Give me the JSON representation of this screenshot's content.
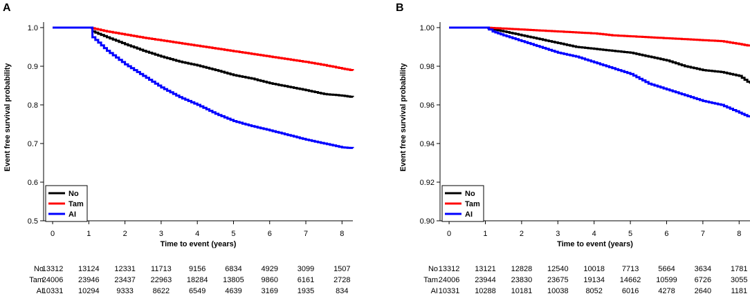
{
  "chart_data": [
    {
      "panel": "A",
      "type": "line",
      "xlabel": "Time to event (years)",
      "ylabel": "Event free survival probability",
      "xlim": [
        -0.25,
        8.3
      ],
      "ylim": [
        0.5,
        1.0
      ],
      "xticks": [
        "0",
        "1",
        "2",
        "3",
        "4",
        "5",
        "6",
        "7",
        "8"
      ],
      "yticks": [
        "0.5",
        "0.6",
        "0.7",
        "0.8",
        "0.9",
        "1.0"
      ],
      "legend": [
        "No",
        "Tam",
        "AI"
      ],
      "series": [
        {
          "name": "No",
          "color": "#000000",
          "points": [
            [
              0,
              1.0
            ],
            [
              1,
              1.0
            ],
            [
              1.1,
              0.99
            ],
            [
              1.5,
              0.975
            ],
            [
              2,
              0.957
            ],
            [
              2.5,
              0.94
            ],
            [
              3,
              0.925
            ],
            [
              3.5,
              0.912
            ],
            [
              4,
              0.902
            ],
            [
              4.5,
              0.89
            ],
            [
              5,
              0.877
            ],
            [
              5.5,
              0.868
            ],
            [
              6,
              0.856
            ],
            [
              6.5,
              0.847
            ],
            [
              7,
              0.838
            ],
            [
              7.5,
              0.828
            ],
            [
              8,
              0.824
            ],
            [
              8.3,
              0.82
            ]
          ]
        },
        {
          "name": "Tam",
          "color": "#ff0000",
          "points": [
            [
              0,
              1.0
            ],
            [
              1,
              1.0
            ],
            [
              1.5,
              0.99
            ],
            [
              2,
              0.982
            ],
            [
              2.5,
              0.974
            ],
            [
              3,
              0.967
            ],
            [
              3.5,
              0.96
            ],
            [
              4,
              0.953
            ],
            [
              4.5,
              0.946
            ],
            [
              5,
              0.939
            ],
            [
              5.5,
              0.932
            ],
            [
              6,
              0.925
            ],
            [
              6.5,
              0.918
            ],
            [
              7,
              0.911
            ],
            [
              7.5,
              0.903
            ],
            [
              8,
              0.894
            ],
            [
              8.3,
              0.889
            ]
          ]
        },
        {
          "name": "AI",
          "color": "#0000ff",
          "points": [
            [
              0,
              1.0
            ],
            [
              1,
              1.0
            ],
            [
              1.1,
              0.975
            ],
            [
              1.5,
              0.94
            ],
            [
              2,
              0.905
            ],
            [
              2.5,
              0.875
            ],
            [
              3,
              0.845
            ],
            [
              3.5,
              0.82
            ],
            [
              4,
              0.8
            ],
            [
              4.5,
              0.777
            ],
            [
              5,
              0.758
            ],
            [
              5.5,
              0.745
            ],
            [
              6,
              0.734
            ],
            [
              6.5,
              0.722
            ],
            [
              7,
              0.71
            ],
            [
              7.5,
              0.7
            ],
            [
              8,
              0.69
            ],
            [
              8.3,
              0.688
            ]
          ]
        }
      ],
      "risk_table": {
        "times": [
          "0",
          "1",
          "2",
          "3",
          "4",
          "5",
          "6",
          "7",
          "8"
        ],
        "rows": [
          {
            "label": "No",
            "counts": [
              "13312",
              "13124",
              "12331",
              "11713",
              "9156",
              "6834",
              "4929",
              "3099",
              "1507"
            ]
          },
          {
            "label": "Tam",
            "counts": [
              "24006",
              "23946",
              "23437",
              "22963",
              "18284",
              "13805",
              "9860",
              "6161",
              "2728"
            ]
          },
          {
            "label": "AI",
            "counts": [
              "10331",
              "10294",
              "9333",
              "8622",
              "6549",
              "4639",
              "3169",
              "1935",
              "834"
            ]
          }
        ]
      }
    },
    {
      "panel": "B",
      "type": "line",
      "xlabel": "Time to event (years)",
      "ylabel": "Event free survival probability",
      "xlim": [
        -0.25,
        8.3
      ],
      "ylim": [
        0.9,
        1.0
      ],
      "xticks": [
        "0",
        "1",
        "2",
        "3",
        "4",
        "5",
        "6",
        "7",
        "8"
      ],
      "yticks": [
        "0.90",
        "0.92",
        "0.94",
        "0.96",
        "0.98",
        "1.00"
      ],
      "legend": [
        "No",
        "Tam",
        "AI"
      ],
      "series": [
        {
          "name": "No",
          "color": "#000000",
          "points": [
            [
              0,
              1.0
            ],
            [
              1,
              1.0
            ],
            [
              1.5,
              0.998
            ],
            [
              2,
              0.996
            ],
            [
              2.5,
              0.994
            ],
            [
              3,
              0.992
            ],
            [
              3.5,
              0.99
            ],
            [
              4,
              0.989
            ],
            [
              4.5,
              0.988
            ],
            [
              5,
              0.987
            ],
            [
              5.5,
              0.985
            ],
            [
              6,
              0.983
            ],
            [
              6.5,
              0.98
            ],
            [
              7,
              0.978
            ],
            [
              7.5,
              0.977
            ],
            [
              8,
              0.975
            ],
            [
              8.3,
              0.971
            ]
          ]
        },
        {
          "name": "Tam",
          "color": "#ff0000",
          "points": [
            [
              0,
              1.0
            ],
            [
              1,
              1.0
            ],
            [
              1.5,
              0.9995
            ],
            [
              2,
              0.999
            ],
            [
              2.5,
              0.9985
            ],
            [
              3,
              0.998
            ],
            [
              3.5,
              0.9975
            ],
            [
              4,
              0.997
            ],
            [
              4.5,
              0.996
            ],
            [
              5,
              0.9955
            ],
            [
              5.5,
              0.995
            ],
            [
              6,
              0.9945
            ],
            [
              6.5,
              0.994
            ],
            [
              7,
              0.9935
            ],
            [
              7.5,
              0.993
            ],
            [
              8,
              0.9915
            ],
            [
              8.3,
              0.9905
            ]
          ]
        },
        {
          "name": "AI",
          "color": "#0000ff",
          "points": [
            [
              0,
              1.0
            ],
            [
              1,
              1.0
            ],
            [
              1.2,
              0.998
            ],
            [
              1.5,
              0.996
            ],
            [
              2,
              0.993
            ],
            [
              2.5,
              0.99
            ],
            [
              3,
              0.987
            ],
            [
              3.5,
              0.985
            ],
            [
              4,
              0.982
            ],
            [
              4.5,
              0.979
            ],
            [
              5,
              0.976
            ],
            [
              5.5,
              0.971
            ],
            [
              6,
              0.968
            ],
            [
              6.5,
              0.965
            ],
            [
              7,
              0.962
            ],
            [
              7.5,
              0.96
            ],
            [
              8,
              0.956
            ],
            [
              8.3,
              0.9535
            ]
          ]
        }
      ],
      "risk_table": {
        "times": [
          "0",
          "1",
          "2",
          "3",
          "4",
          "5",
          "6",
          "7",
          "8"
        ],
        "rows": [
          {
            "label": "No",
            "counts": [
              "13312",
              "13121",
              "12828",
              "12540",
              "10018",
              "7713",
              "5664",
              "3634",
              "1781"
            ]
          },
          {
            "label": "Tam",
            "counts": [
              "24006",
              "23944",
              "23830",
              "23675",
              "19134",
              "14662",
              "10599",
              "6726",
              "3055"
            ]
          },
          {
            "label": "AI",
            "counts": [
              "10331",
              "10288",
              "10181",
              "10038",
              "8052",
              "6016",
              "4278",
              "2640",
              "1181"
            ]
          }
        ]
      }
    }
  ]
}
